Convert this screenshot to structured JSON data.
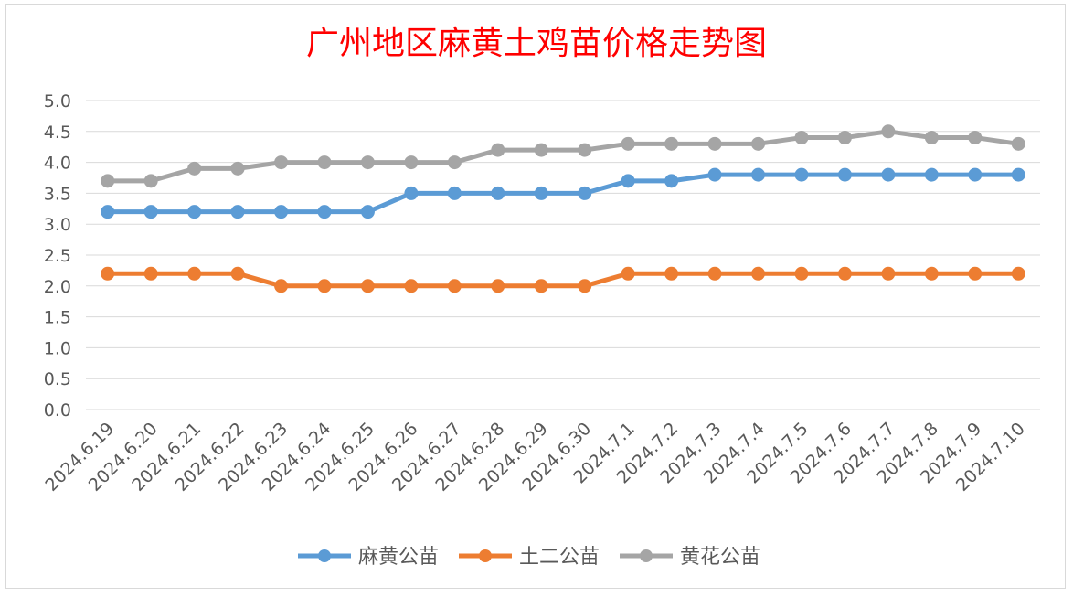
{
  "chart_data": {
    "type": "line",
    "title": "广州地区麻黄土鸡苗价格走势图",
    "xlabel": "",
    "ylabel": "",
    "ylim": [
      0,
      5
    ],
    "yticks": [
      "0.0",
      "0.5",
      "1.0",
      "1.5",
      "2.0",
      "2.5",
      "3.0",
      "3.5",
      "4.0",
      "4.5",
      "5.0"
    ],
    "grid": true,
    "legend_position": "bottom",
    "categories": [
      "2024.6.19",
      "2024.6.20",
      "2024.6.21",
      "2024.6.22",
      "2024.6.23",
      "2024.6.24",
      "2024.6.25",
      "2024.6.26",
      "2024.6.27",
      "2024.6.28",
      "2024.6.29",
      "2024.6.30",
      "2024.7.1",
      "2024.7.2",
      "2024.7.3",
      "2024.7.4",
      "2024.7.5",
      "2024.7.6",
      "2024.7.7",
      "2024.7.8",
      "2024.7.9",
      "2024.7.10"
    ],
    "series": [
      {
        "name": "麻黄公苗",
        "color": "#5b9bd5",
        "values": [
          3.2,
          3.2,
          3.2,
          3.2,
          3.2,
          3.2,
          3.2,
          3.5,
          3.5,
          3.5,
          3.5,
          3.5,
          3.7,
          3.7,
          3.8,
          3.8,
          3.8,
          3.8,
          3.8,
          3.8,
          3.8,
          3.8
        ]
      },
      {
        "name": "土二公苗",
        "color": "#ed7d31",
        "values": [
          2.2,
          2.2,
          2.2,
          2.2,
          2.0,
          2.0,
          2.0,
          2.0,
          2.0,
          2.0,
          2.0,
          2.0,
          2.2,
          2.2,
          2.2,
          2.2,
          2.2,
          2.2,
          2.2,
          2.2,
          2.2,
          2.2
        ]
      },
      {
        "name": "黄花公苗",
        "color": "#a5a5a5",
        "values": [
          3.7,
          3.7,
          3.9,
          3.9,
          4.0,
          4.0,
          4.0,
          4.0,
          4.0,
          4.2,
          4.2,
          4.2,
          4.3,
          4.3,
          4.3,
          4.3,
          4.4,
          4.4,
          4.5,
          4.4,
          4.4,
          4.3
        ]
      }
    ]
  }
}
